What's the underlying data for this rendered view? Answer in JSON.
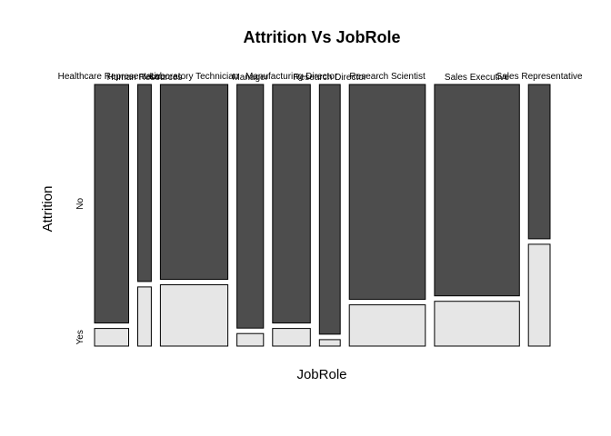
{
  "chart_data": {
    "type": "mosaic",
    "title": "Attrition Vs JobRole",
    "xlabel": "JobRole",
    "ylabel": "Attrition",
    "levels": [
      "No",
      "Yes"
    ],
    "colors": {
      "No": "#4d4d4d",
      "Yes": "#e6e6e6"
    },
    "categories": [
      "Healthcare Representative",
      "Human Resources",
      "Laboratory Technician",
      "Manager",
      "Manufacturing Director",
      "Research Director",
      "Research Scientist",
      "Sales Executive",
      "Sales Representative"
    ],
    "counts": {
      "No": [
        122,
        40,
        197,
        97,
        135,
        78,
        245,
        269,
        50
      ],
      "Yes": [
        9,
        12,
        62,
        5,
        10,
        2,
        47,
        57,
        33
      ]
    }
  }
}
